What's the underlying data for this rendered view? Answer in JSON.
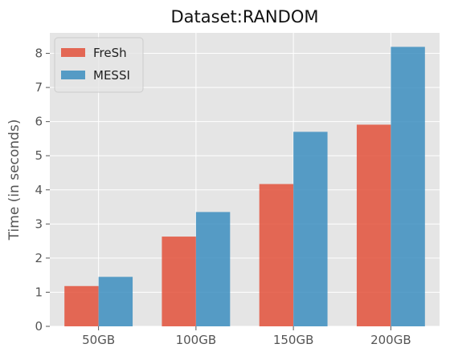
{
  "chart_data": {
    "type": "bar",
    "title": "Dataset:RANDOM",
    "xlabel": "",
    "ylabel": "Time (in seconds)",
    "categories": [
      "50GB",
      "100GB",
      "150GB",
      "200GB"
    ],
    "series": [
      {
        "name": "FreSh",
        "color": "#e24a33",
        "values": [
          1.18,
          2.63,
          4.17,
          5.91
        ]
      },
      {
        "name": "MESSI",
        "color": "#348abd",
        "values": [
          1.45,
          3.35,
          5.7,
          8.19
        ]
      }
    ],
    "ylim": [
      0,
      8.6
    ],
    "yticks": [
      0,
      1,
      2,
      3,
      4,
      5,
      6,
      7,
      8
    ],
    "grid": true,
    "legend": "top-left",
    "background": "#e5e5e5"
  }
}
